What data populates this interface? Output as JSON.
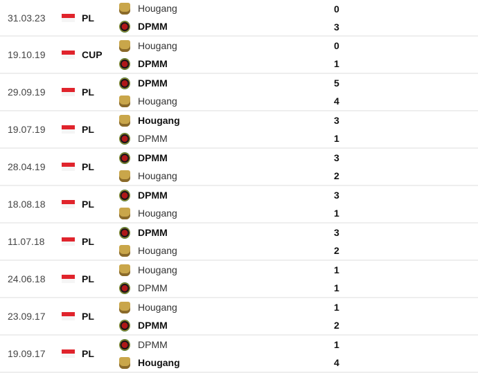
{
  "matches": [
    {
      "date": "31.03.23",
      "competition": "PL",
      "flag": "singapore-flag",
      "home": {
        "team": "Hougang",
        "score": "0",
        "winner": false
      },
      "away": {
        "team": "DPMM",
        "score": "3",
        "winner": true
      }
    },
    {
      "date": "19.10.19",
      "competition": "CUP",
      "flag": "singapore-flag",
      "home": {
        "team": "Hougang",
        "score": "0",
        "winner": false
      },
      "away": {
        "team": "DPMM",
        "score": "1",
        "winner": true
      }
    },
    {
      "date": "29.09.19",
      "competition": "PL",
      "flag": "singapore-flag",
      "home": {
        "team": "DPMM",
        "score": "5",
        "winner": true
      },
      "away": {
        "team": "Hougang",
        "score": "4",
        "winner": false
      }
    },
    {
      "date": "19.07.19",
      "competition": "PL",
      "flag": "singapore-flag",
      "home": {
        "team": "Hougang",
        "score": "3",
        "winner": true
      },
      "away": {
        "team": "DPMM",
        "score": "1",
        "winner": false
      }
    },
    {
      "date": "28.04.19",
      "competition": "PL",
      "flag": "singapore-flag",
      "home": {
        "team": "DPMM",
        "score": "3",
        "winner": true
      },
      "away": {
        "team": "Hougang",
        "score": "2",
        "winner": false
      }
    },
    {
      "date": "18.08.18",
      "competition": "PL",
      "flag": "singapore-flag",
      "home": {
        "team": "DPMM",
        "score": "3",
        "winner": true
      },
      "away": {
        "team": "Hougang",
        "score": "1",
        "winner": false
      }
    },
    {
      "date": "11.07.18",
      "competition": "PL",
      "flag": "singapore-flag",
      "home": {
        "team": "DPMM",
        "score": "3",
        "winner": true
      },
      "away": {
        "team": "Hougang",
        "score": "2",
        "winner": false
      }
    },
    {
      "date": "24.06.18",
      "competition": "PL",
      "flag": "singapore-flag",
      "home": {
        "team": "Hougang",
        "score": "1",
        "winner": false
      },
      "away": {
        "team": "DPMM",
        "score": "1",
        "winner": false
      }
    },
    {
      "date": "23.09.17",
      "competition": "PL",
      "flag": "singapore-flag",
      "home": {
        "team": "Hougang",
        "score": "1",
        "winner": false
      },
      "away": {
        "team": "DPMM",
        "score": "2",
        "winner": true
      }
    },
    {
      "date": "19.09.17",
      "competition": "PL",
      "flag": "singapore-flag",
      "home": {
        "team": "DPMM",
        "score": "1",
        "winner": false
      },
      "away": {
        "team": "Hougang",
        "score": "4",
        "winner": true
      }
    }
  ]
}
